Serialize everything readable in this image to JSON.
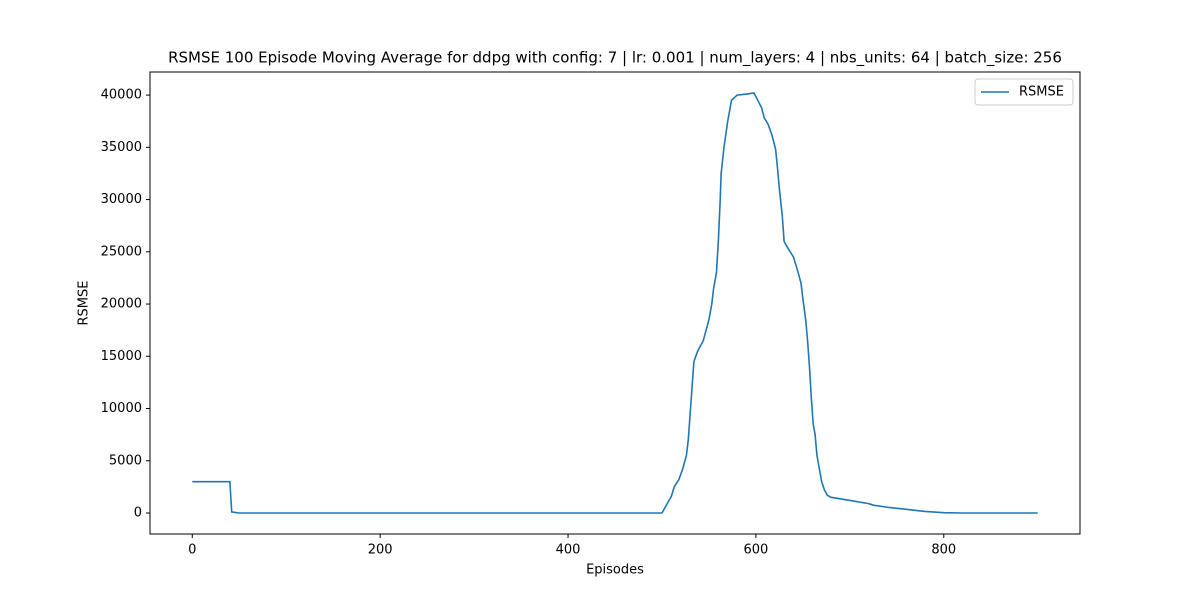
{
  "chart_data": {
    "type": "line",
    "title": "RSMSE 100 Episode Moving Average for ddpg with config: 7 | lr: 0.001 | num_layers: 4 | nbs_units: 64 | batch_size: 256",
    "x_label": "Episodes",
    "y_label": "RSMSE",
    "x": [
      0,
      40,
      42,
      50,
      500,
      505,
      510,
      513,
      518,
      522,
      526,
      528,
      530,
      532,
      534,
      538,
      544,
      550,
      553,
      555,
      558,
      560,
      562,
      563,
      566,
      570,
      574,
      580,
      590,
      598,
      602,
      606,
      609,
      613,
      617,
      621,
      623,
      625,
      628,
      630,
      633,
      640,
      645,
      648,
      650,
      653,
      655,
      657,
      659,
      661,
      663,
      665,
      667,
      670,
      673,
      676,
      680,
      700,
      720,
      725,
      740,
      760,
      780,
      800,
      820,
      900
    ],
    "series": [
      {
        "name": "RSMSE",
        "color": "#1f77b4",
        "values": [
          3000,
          3000,
          100,
          0,
          0,
          800,
          1600,
          2500,
          3200,
          4200,
          5500,
          7000,
          9500,
          12000,
          14500,
          15500,
          16500,
          18500,
          20000,
          21500,
          23000,
          26000,
          30000,
          32500,
          35000,
          37500,
          39500,
          40000,
          40100,
          40200,
          39500,
          38800,
          37800,
          37200,
          36200,
          34800,
          33000,
          31000,
          28500,
          26000,
          25500,
          24500,
          23000,
          22000,
          20500,
          18500,
          16500,
          14000,
          11000,
          8500,
          7500,
          5500,
          4500,
          3000,
          2200,
          1700,
          1500,
          1200,
          900,
          750,
          550,
          350,
          150,
          30,
          0,
          0
        ]
      }
    ],
    "xlim": [
      -45,
      945
    ],
    "ylim": [
      -2010,
      42210
    ],
    "xticks": [
      0,
      200,
      400,
      600,
      800
    ],
    "yticks": [
      0,
      5000,
      10000,
      15000,
      20000,
      25000,
      30000,
      35000,
      40000
    ],
    "grid": false,
    "legend": "upper-right"
  }
}
